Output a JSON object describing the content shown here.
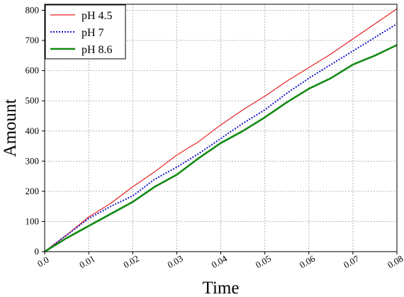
{
  "chart_data": {
    "type": "line",
    "title": "",
    "xlabel": "Time",
    "ylabel": "Amount",
    "xlim": [
      0.0,
      0.08
    ],
    "ylim": [
      0,
      820
    ],
    "x_ticks": [
      0.0,
      0.01,
      0.02,
      0.03,
      0.04,
      0.05,
      0.06,
      0.07,
      0.08
    ],
    "x_tick_labels": [
      "0.0",
      "0.01",
      "0.02",
      "0.03",
      "0.04",
      "0.05",
      "0.06",
      "0.07",
      "0.08"
    ],
    "y_ticks": [
      0,
      100,
      200,
      300,
      400,
      500,
      600,
      700,
      800
    ],
    "y_tick_labels": [
      "0",
      "100",
      "200",
      "300",
      "400",
      "500",
      "600",
      "700",
      "800"
    ],
    "grid": true,
    "legend_position": "top-left",
    "series": [
      {
        "name": "pH 4.5",
        "color": "#e8201c",
        "style": "solid",
        "x": [
          0.0,
          0.005,
          0.01,
          0.015,
          0.02,
          0.025,
          0.03,
          0.035,
          0.04,
          0.045,
          0.05,
          0.055,
          0.06,
          0.065,
          0.07,
          0.075,
          0.08
        ],
        "y": [
          0,
          55,
          115,
          160,
          215,
          265,
          320,
          365,
          420,
          470,
          515,
          565,
          610,
          655,
          705,
          755,
          805
        ]
      },
      {
        "name": "pH 7",
        "color": "#1717cc",
        "style": "dotted",
        "x": [
          0.0,
          0.005,
          0.01,
          0.015,
          0.02,
          0.025,
          0.03,
          0.035,
          0.04,
          0.045,
          0.05,
          0.055,
          0.06,
          0.065,
          0.07,
          0.075,
          0.08
        ],
        "y": [
          0,
          55,
          110,
          150,
          185,
          240,
          280,
          325,
          375,
          425,
          470,
          525,
          575,
          620,
          665,
          710,
          755
        ]
      },
      {
        "name": "pH 8.6",
        "color": "#138a13",
        "style": "thick",
        "x": [
          0.0,
          0.005,
          0.01,
          0.015,
          0.02,
          0.025,
          0.03,
          0.035,
          0.04,
          0.045,
          0.05,
          0.055,
          0.06,
          0.065,
          0.07,
          0.075,
          0.08
        ],
        "y": [
          0,
          45,
          85,
          125,
          165,
          215,
          255,
          310,
          360,
          400,
          445,
          495,
          540,
          575,
          620,
          650,
          685
        ]
      }
    ]
  }
}
